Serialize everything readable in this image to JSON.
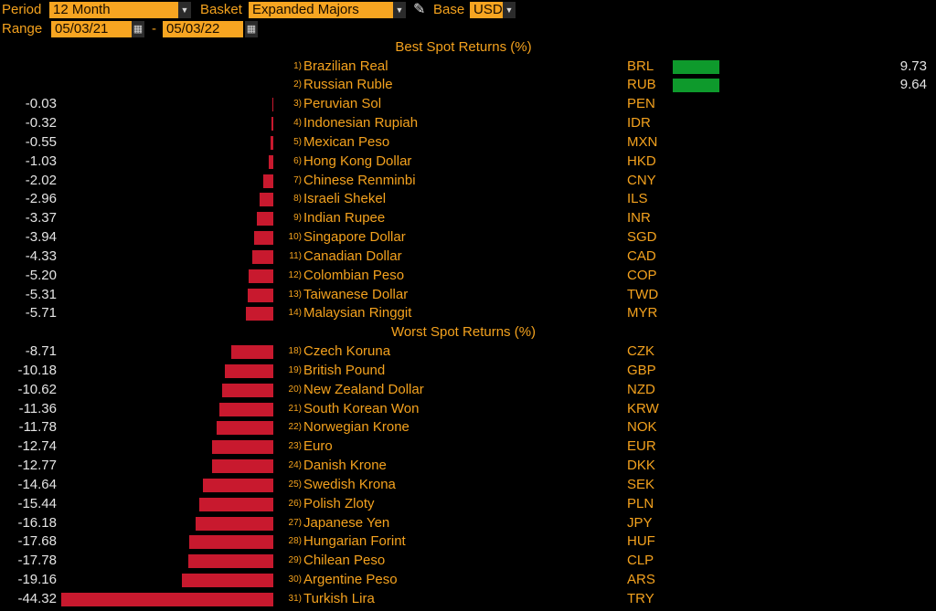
{
  "header": {
    "period_label": "Period",
    "period_value": "12 Month",
    "basket_label": "Basket",
    "basket_value": "Expanded Majors",
    "base_label": "Base",
    "base_value": "USD",
    "range_label": "Range",
    "range_start": "05/03/21",
    "range_sep": "-",
    "range_end": "05/03/22"
  },
  "colors": {
    "positive": "#0e9a2c",
    "negative": "#c8192e",
    "accent": "#f4a21e"
  },
  "chart_data": {
    "type": "bar",
    "sections": [
      {
        "title": "Best Spot Returns (%)",
        "rows": [
          {
            "rank": "1)",
            "name": "Brazilian Real",
            "code": "BRL",
            "value": 9.73,
            "label": "9.73"
          },
          {
            "rank": "2)",
            "name": "Russian Ruble",
            "code": "RUB",
            "value": 9.64,
            "label": "9.64"
          },
          {
            "rank": "3)",
            "name": "Peruvian Sol",
            "code": "PEN",
            "value": -0.03,
            "label": "-0.03"
          },
          {
            "rank": "4)",
            "name": "Indonesian Rupiah",
            "code": "IDR",
            "value": -0.32,
            "label": "-0.32"
          },
          {
            "rank": "5)",
            "name": "Mexican Peso",
            "code": "MXN",
            "value": -0.55,
            "label": "-0.55"
          },
          {
            "rank": "6)",
            "name": "Hong Kong Dollar",
            "code": "HKD",
            "value": -1.03,
            "label": "-1.03"
          },
          {
            "rank": "7)",
            "name": "Chinese Renminbi",
            "code": "CNY",
            "value": -2.02,
            "label": "-2.02"
          },
          {
            "rank": "8)",
            "name": "Israeli Shekel",
            "code": "ILS",
            "value": -2.96,
            "label": "-2.96"
          },
          {
            "rank": "9)",
            "name": "Indian Rupee",
            "code": "INR",
            "value": -3.37,
            "label": "-3.37"
          },
          {
            "rank": "10)",
            "name": "Singapore Dollar",
            "code": "SGD",
            "value": -3.94,
            "label": "-3.94"
          },
          {
            "rank": "11)",
            "name": "Canadian Dollar",
            "code": "CAD",
            "value": -4.33,
            "label": "-4.33"
          },
          {
            "rank": "12)",
            "name": "Colombian Peso",
            "code": "COP",
            "value": -5.2,
            "label": "-5.20"
          },
          {
            "rank": "13)",
            "name": "Taiwanese Dollar",
            "code": "TWD",
            "value": -5.31,
            "label": "-5.31"
          },
          {
            "rank": "14)",
            "name": "Malaysian Ringgit",
            "code": "MYR",
            "value": -5.71,
            "label": "-5.71"
          }
        ]
      },
      {
        "title": "Worst Spot Returns (%)",
        "rows": [
          {
            "rank": "18)",
            "name": "Czech Koruna",
            "code": "CZK",
            "value": -8.71,
            "label": "-8.71"
          },
          {
            "rank": "19)",
            "name": "British Pound",
            "code": "GBP",
            "value": -10.18,
            "label": "-10.18"
          },
          {
            "rank": "20)",
            "name": "New Zealand Dollar",
            "code": "NZD",
            "value": -10.62,
            "label": "-10.62"
          },
          {
            "rank": "21)",
            "name": "South Korean Won",
            "code": "KRW",
            "value": -11.36,
            "label": "-11.36"
          },
          {
            "rank": "22)",
            "name": "Norwegian Krone",
            "code": "NOK",
            "value": -11.78,
            "label": "-11.78"
          },
          {
            "rank": "23)",
            "name": "Euro",
            "code": "EUR",
            "value": -12.74,
            "label": "-12.74"
          },
          {
            "rank": "24)",
            "name": "Danish Krone",
            "code": "DKK",
            "value": -12.77,
            "label": "-12.77"
          },
          {
            "rank": "25)",
            "name": "Swedish Krona",
            "code": "SEK",
            "value": -14.64,
            "label": "-14.64"
          },
          {
            "rank": "26)",
            "name": "Polish Zloty",
            "code": "PLN",
            "value": -15.44,
            "label": "-15.44"
          },
          {
            "rank": "27)",
            "name": "Japanese Yen",
            "code": "JPY",
            "value": -16.18,
            "label": "-16.18"
          },
          {
            "rank": "28)",
            "name": "Hungarian Forint",
            "code": "HUF",
            "value": -17.68,
            "label": "-17.68"
          },
          {
            "rank": "29)",
            "name": "Chilean Peso",
            "code": "CLP",
            "value": -17.78,
            "label": "-17.78"
          },
          {
            "rank": "30)",
            "name": "Argentine Peso",
            "code": "ARS",
            "value": -19.16,
            "label": "-19.16"
          },
          {
            "rank": "31)",
            "name": "Turkish Lira",
            "code": "TRY",
            "value": -44.32,
            "label": "-44.32"
          }
        ]
      }
    ]
  }
}
